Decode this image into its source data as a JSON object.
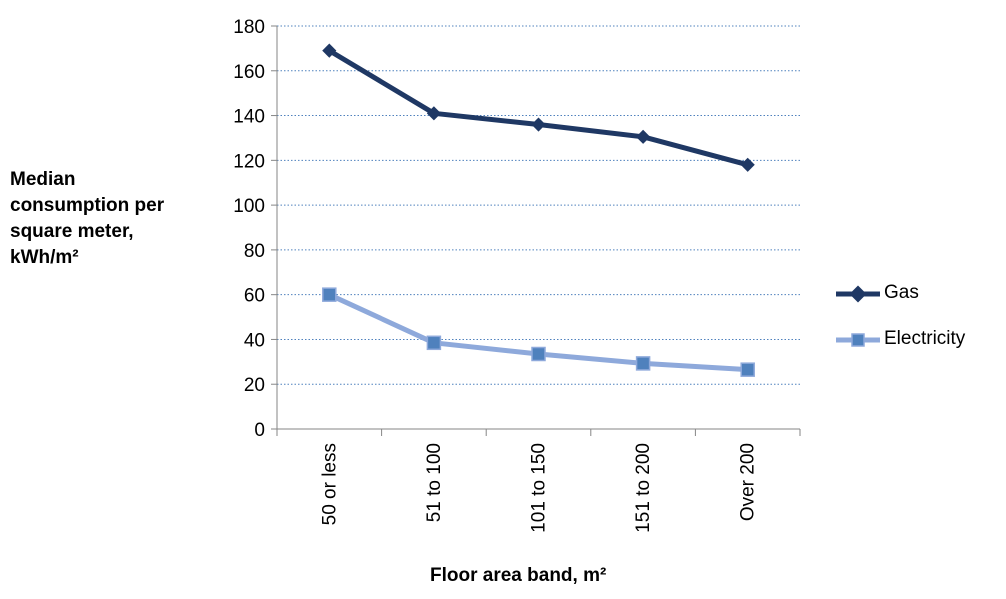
{
  "chart_data": {
    "type": "line",
    "categories": [
      "50 or less",
      "51 to 100",
      "101 to 150",
      "151 to 200",
      "Over 200"
    ],
    "series": [
      {
        "name": "Gas",
        "values": [
          169,
          141,
          136,
          130.5,
          118
        ],
        "color": "#1f3864",
        "marker": "diamond"
      },
      {
        "name": "Electricity",
        "values": [
          60,
          38.5,
          33.5,
          29.3,
          26.5
        ],
        "color": "#8ea9db",
        "marker": "square",
        "marker_color": "#4f81bd"
      }
    ],
    "ylim": [
      0,
      180
    ],
    "yticks": [
      0,
      20,
      40,
      60,
      80,
      100,
      120,
      140,
      160,
      180
    ],
    "ylabel_lines": [
      "Median",
      "consumption per",
      "square meter,",
      "kWh/m²"
    ],
    "xlabel": "Floor area band, m²",
    "grid": "horizontal dotted",
    "legend": "right"
  }
}
